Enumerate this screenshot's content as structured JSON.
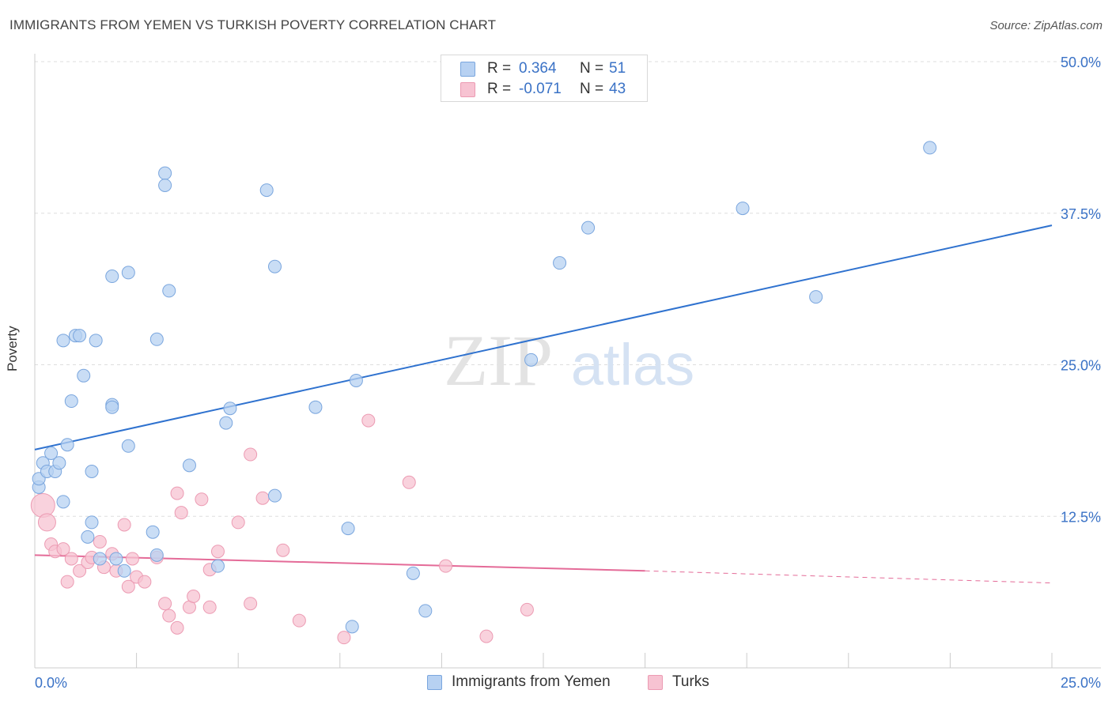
{
  "title": "IMMIGRANTS FROM YEMEN VS TURKISH POVERTY CORRELATION CHART",
  "source": "Source: ZipAtlas.com",
  "watermark": {
    "zip": "ZIP",
    "atlas": "atlas"
  },
  "legend_top": [
    {
      "r_label": "R =",
      "r_value": "0.364",
      "n_label": "N =",
      "n_value": "51"
    },
    {
      "r_label": "R =",
      "r_value": "-0.071",
      "n_label": "N =",
      "n_value": "43"
    }
  ],
  "legend_bottom": [
    {
      "label": "Immigrants from Yemen"
    },
    {
      "label": "Turks"
    }
  ],
  "colors": {
    "blue_fill": "#b7d1f2",
    "blue_stroke": "#7aa6de",
    "blue_line": "#2f72cf",
    "pink_fill": "#f7c3d2",
    "pink_stroke": "#ec9bb3",
    "pink_line": "#e46b98",
    "tick_label": "#3a72c6",
    "grid": "#dddddd"
  },
  "chart_data": {
    "type": "scatter",
    "title": "IMMIGRANTS FROM YEMEN VS TURKISH POVERTY CORRELATION CHART",
    "xlabel": "",
    "ylabel": "Poverty",
    "xlim": [
      0,
      25
    ],
    "ylim": [
      0,
      50
    ],
    "x_tick_labels": [
      "0.0%",
      "25.0%"
    ],
    "y_ticks": [
      12.5,
      25.0,
      37.5,
      50.0
    ],
    "y_tick_labels": [
      "12.5%",
      "25.0%",
      "37.5%",
      "50.0%"
    ],
    "series": [
      {
        "name": "Immigrants from Yemen",
        "color": "blue",
        "points": [
          [
            0.1,
            14.9
          ],
          [
            0.1,
            15.6
          ],
          [
            0.2,
            16.9
          ],
          [
            0.3,
            16.2
          ],
          [
            0.4,
            17.7
          ],
          [
            0.5,
            16.2
          ],
          [
            0.6,
            16.9
          ],
          [
            0.7,
            13.7
          ],
          [
            0.7,
            27.0
          ],
          [
            0.8,
            18.4
          ],
          [
            0.9,
            22.0
          ],
          [
            1.0,
            27.4
          ],
          [
            1.1,
            27.4
          ],
          [
            1.2,
            24.1
          ],
          [
            1.4,
            16.2
          ],
          [
            1.5,
            27.0
          ],
          [
            1.9,
            32.3
          ],
          [
            1.9,
            21.7
          ],
          [
            1.9,
            21.5
          ],
          [
            2.3,
            32.6
          ],
          [
            2.3,
            18.3
          ],
          [
            3.0,
            27.1
          ],
          [
            3.2,
            40.8
          ],
          [
            3.2,
            39.8
          ],
          [
            3.3,
            31.1
          ],
          [
            3.8,
            16.7
          ],
          [
            4.7,
            20.2
          ],
          [
            4.8,
            21.4
          ],
          [
            5.7,
            39.4
          ],
          [
            5.9,
            33.1
          ],
          [
            6.9,
            21.5
          ],
          [
            7.9,
            23.7
          ],
          [
            1.3,
            10.8
          ],
          [
            1.4,
            12.0
          ],
          [
            1.6,
            9.0
          ],
          [
            2.0,
            9.0
          ],
          [
            2.2,
            8.0
          ],
          [
            2.9,
            11.2
          ],
          [
            3.0,
            9.3
          ],
          [
            4.5,
            8.4
          ],
          [
            5.9,
            14.2
          ],
          [
            7.7,
            11.5
          ],
          [
            7.8,
            3.4
          ],
          [
            9.3,
            7.8
          ],
          [
            9.6,
            4.7
          ],
          [
            12.2,
            25.4
          ],
          [
            12.9,
            33.4
          ],
          [
            13.6,
            36.3
          ],
          [
            17.4,
            37.9
          ],
          [
            19.2,
            30.6
          ],
          [
            22.0,
            42.9
          ]
        ]
      },
      {
        "name": "Turks",
        "color": "pink",
        "points": [
          [
            0.2,
            13.4
          ],
          [
            0.3,
            12.0
          ],
          [
            0.4,
            10.2
          ],
          [
            0.5,
            9.6
          ],
          [
            0.7,
            9.8
          ],
          [
            0.8,
            7.1
          ],
          [
            0.9,
            9.0
          ],
          [
            1.1,
            8.0
          ],
          [
            1.3,
            8.7
          ],
          [
            1.4,
            9.1
          ],
          [
            1.6,
            10.4
          ],
          [
            1.7,
            8.3
          ],
          [
            1.9,
            9.4
          ],
          [
            2.0,
            8.0
          ],
          [
            2.2,
            11.8
          ],
          [
            2.3,
            6.7
          ],
          [
            2.4,
            9.0
          ],
          [
            2.5,
            7.5
          ],
          [
            2.7,
            7.1
          ],
          [
            3.0,
            9.1
          ],
          [
            3.2,
            5.3
          ],
          [
            3.3,
            4.3
          ],
          [
            3.5,
            3.3
          ],
          [
            3.5,
            14.4
          ],
          [
            3.6,
            12.8
          ],
          [
            3.8,
            5.0
          ],
          [
            3.9,
            5.9
          ],
          [
            4.1,
            13.9
          ],
          [
            4.3,
            8.1
          ],
          [
            4.3,
            5.0
          ],
          [
            4.5,
            9.6
          ],
          [
            5.0,
            12.0
          ],
          [
            5.3,
            17.6
          ],
          [
            5.3,
            5.3
          ],
          [
            5.6,
            14.0
          ],
          [
            6.1,
            9.7
          ],
          [
            6.5,
            3.9
          ],
          [
            7.6,
            2.5
          ],
          [
            8.2,
            20.4
          ],
          [
            9.2,
            15.3
          ],
          [
            10.1,
            8.4
          ],
          [
            11.1,
            2.6
          ],
          [
            12.1,
            4.8
          ]
        ]
      }
    ],
    "trendlines": [
      {
        "series": "Immigrants from Yemen",
        "x": [
          0,
          25
        ],
        "y": [
          18.0,
          36.5
        ],
        "style": "solid"
      },
      {
        "series": "Turks",
        "x": [
          0,
          15
        ],
        "y": [
          9.3,
          8.0
        ],
        "style": "solid"
      },
      {
        "series": "Turks",
        "x": [
          15,
          25
        ],
        "y": [
          8.0,
          7.0
        ],
        "style": "dashed"
      }
    ]
  }
}
